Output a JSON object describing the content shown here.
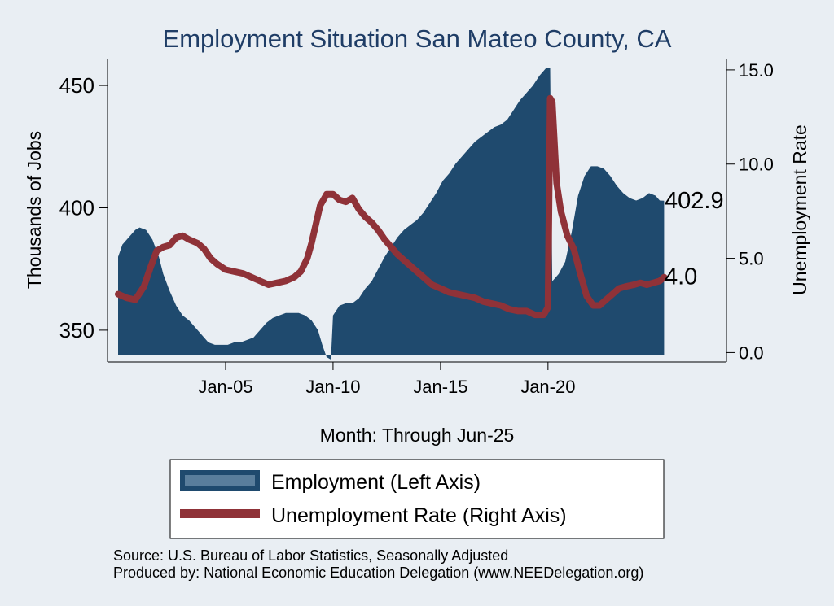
{
  "chart_data": {
    "type": "area",
    "title": "Employment Situation San Mateo  County, CA",
    "xlabel": "Month: Through Jun-25",
    "ylabel_left": "Thousands of Jobs",
    "ylabel_right": "Unemployment Rate",
    "x_range": [
      2000.0,
      2025.5
    ],
    "x_ticks": [
      {
        "x": 2005.0,
        "label": "Jan-05"
      },
      {
        "x": 2010.0,
        "label": "Jan-10"
      },
      {
        "x": 2015.0,
        "label": "Jan-15"
      },
      {
        "x": 2020.0,
        "label": "Jan-20"
      }
    ],
    "ylim_left": [
      337,
      461
    ],
    "yticks_left": [
      {
        "v": 350,
        "label": "350"
      },
      {
        "v": 400,
        "label": "400"
      },
      {
        "v": 450,
        "label": "450"
      }
    ],
    "ylim_right": [
      -0.5,
      15.6
    ],
    "yticks_right": [
      {
        "v": 0,
        "label": "0.0"
      },
      {
        "v": 5,
        "label": "5.0"
      },
      {
        "v": 10,
        "label": "10.0"
      },
      {
        "v": 15,
        "label": "15.0"
      }
    ],
    "area_baseline": 340,
    "grid": false,
    "legend_position": "bottom",
    "series": [
      {
        "name": "Employment (Left Axis)",
        "axis": "left",
        "kind": "area",
        "color": "#1f4a6e",
        "end_label": "402.9",
        "points": [
          [
            2000.0,
            380
          ],
          [
            2000.2,
            385
          ],
          [
            2000.5,
            388
          ],
          [
            2000.8,
            391
          ],
          [
            2001.0,
            392
          ],
          [
            2001.3,
            391
          ],
          [
            2001.6,
            387
          ],
          [
            2001.9,
            380
          ],
          [
            2002.1,
            373
          ],
          [
            2002.4,
            366
          ],
          [
            2002.7,
            360
          ],
          [
            2003.0,
            356
          ],
          [
            2003.3,
            354
          ],
          [
            2003.6,
            351
          ],
          [
            2003.9,
            348
          ],
          [
            2004.2,
            345
          ],
          [
            2004.5,
            344
          ],
          [
            2004.8,
            344
          ],
          [
            2005.1,
            344
          ],
          [
            2005.4,
            345
          ],
          [
            2005.7,
            345
          ],
          [
            2006.0,
            346
          ],
          [
            2006.3,
            347
          ],
          [
            2006.6,
            350
          ],
          [
            2006.9,
            353
          ],
          [
            2007.2,
            355
          ],
          [
            2007.5,
            356
          ],
          [
            2007.8,
            357
          ],
          [
            2008.1,
            357
          ],
          [
            2008.4,
            357
          ],
          [
            2008.7,
            356
          ],
          [
            2009.0,
            354
          ],
          [
            2009.3,
            350
          ],
          [
            2009.5,
            344
          ],
          [
            2009.7,
            339
          ],
          [
            2009.9,
            338
          ],
          [
            2010.0,
            356
          ],
          [
            2010.3,
            360
          ],
          [
            2010.6,
            361
          ],
          [
            2010.9,
            361
          ],
          [
            2011.2,
            363
          ],
          [
            2011.5,
            367
          ],
          [
            2011.8,
            370
          ],
          [
            2012.1,
            375
          ],
          [
            2012.4,
            380
          ],
          [
            2012.7,
            384
          ],
          [
            2013.0,
            388
          ],
          [
            2013.3,
            391
          ],
          [
            2013.6,
            393
          ],
          [
            2013.9,
            395
          ],
          [
            2014.2,
            398
          ],
          [
            2014.5,
            402
          ],
          [
            2014.8,
            406
          ],
          [
            2015.1,
            411
          ],
          [
            2015.4,
            414
          ],
          [
            2015.7,
            418
          ],
          [
            2016.0,
            421
          ],
          [
            2016.3,
            424
          ],
          [
            2016.6,
            427
          ],
          [
            2016.9,
            429
          ],
          [
            2017.2,
            431
          ],
          [
            2017.5,
            433
          ],
          [
            2017.8,
            434
          ],
          [
            2018.1,
            436
          ],
          [
            2018.4,
            440
          ],
          [
            2018.7,
            444
          ],
          [
            2019.0,
            447
          ],
          [
            2019.3,
            450
          ],
          [
            2019.6,
            454
          ],
          [
            2019.9,
            457
          ],
          [
            2020.1,
            457
          ],
          [
            2020.2,
            370
          ],
          [
            2020.5,
            373
          ],
          [
            2020.8,
            378
          ],
          [
            2021.1,
            390
          ],
          [
            2021.4,
            405
          ],
          [
            2021.7,
            413
          ],
          [
            2022.0,
            417
          ],
          [
            2022.3,
            417
          ],
          [
            2022.6,
            416
          ],
          [
            2022.9,
            413
          ],
          [
            2023.2,
            409
          ],
          [
            2023.5,
            406
          ],
          [
            2023.8,
            404
          ],
          [
            2024.1,
            403
          ],
          [
            2024.4,
            404
          ],
          [
            2024.7,
            406
          ],
          [
            2025.0,
            405
          ],
          [
            2025.2,
            403
          ],
          [
            2025.4,
            402.9
          ]
        ]
      },
      {
        "name": "Unemployment Rate (Right Axis)",
        "axis": "right",
        "kind": "line",
        "color": "#8f3238",
        "end_label": "4.0",
        "points": [
          [
            2000.0,
            3.1
          ],
          [
            2000.4,
            2.9
          ],
          [
            2000.8,
            2.8
          ],
          [
            2001.2,
            3.5
          ],
          [
            2001.5,
            4.5
          ],
          [
            2001.8,
            5.4
          ],
          [
            2002.1,
            5.6
          ],
          [
            2002.4,
            5.7
          ],
          [
            2002.7,
            6.1
          ],
          [
            2003.0,
            6.2
          ],
          [
            2003.3,
            6.0
          ],
          [
            2003.7,
            5.8
          ],
          [
            2004.0,
            5.5
          ],
          [
            2004.3,
            5.0
          ],
          [
            2004.6,
            4.7
          ],
          [
            2005.0,
            4.4
          ],
          [
            2005.4,
            4.3
          ],
          [
            2005.8,
            4.2
          ],
          [
            2006.2,
            4.0
          ],
          [
            2006.6,
            3.8
          ],
          [
            2007.0,
            3.6
          ],
          [
            2007.4,
            3.7
          ],
          [
            2007.8,
            3.8
          ],
          [
            2008.2,
            4.0
          ],
          [
            2008.5,
            4.3
          ],
          [
            2008.8,
            5.0
          ],
          [
            2009.0,
            5.8
          ],
          [
            2009.2,
            6.8
          ],
          [
            2009.4,
            7.8
          ],
          [
            2009.7,
            8.4
          ],
          [
            2010.0,
            8.4
          ],
          [
            2010.3,
            8.1
          ],
          [
            2010.6,
            8.0
          ],
          [
            2010.9,
            8.2
          ],
          [
            2011.2,
            7.6
          ],
          [
            2011.5,
            7.2
          ],
          [
            2011.8,
            6.9
          ],
          [
            2012.1,
            6.5
          ],
          [
            2012.4,
            6.0
          ],
          [
            2012.7,
            5.6
          ],
          [
            2013.0,
            5.2
          ],
          [
            2013.4,
            4.8
          ],
          [
            2013.8,
            4.4
          ],
          [
            2014.2,
            4.0
          ],
          [
            2014.6,
            3.6
          ],
          [
            2015.0,
            3.4
          ],
          [
            2015.4,
            3.2
          ],
          [
            2015.8,
            3.1
          ],
          [
            2016.2,
            3.0
          ],
          [
            2016.6,
            2.9
          ],
          [
            2017.0,
            2.7
          ],
          [
            2017.4,
            2.6
          ],
          [
            2017.8,
            2.5
          ],
          [
            2018.2,
            2.3
          ],
          [
            2018.6,
            2.2
          ],
          [
            2019.0,
            2.2
          ],
          [
            2019.4,
            2.0
          ],
          [
            2019.8,
            2.0
          ],
          [
            2020.0,
            2.4
          ],
          [
            2020.1,
            13.5
          ],
          [
            2020.2,
            13.3
          ],
          [
            2020.4,
            9.0
          ],
          [
            2020.6,
            7.5
          ],
          [
            2020.9,
            6.2
          ],
          [
            2021.2,
            5.5
          ],
          [
            2021.5,
            4.2
          ],
          [
            2021.8,
            3.0
          ],
          [
            2022.1,
            2.5
          ],
          [
            2022.4,
            2.5
          ],
          [
            2022.7,
            2.8
          ],
          [
            2023.0,
            3.1
          ],
          [
            2023.3,
            3.4
          ],
          [
            2023.6,
            3.5
          ],
          [
            2024.0,
            3.6
          ],
          [
            2024.3,
            3.7
          ],
          [
            2024.6,
            3.6
          ],
          [
            2024.9,
            3.7
          ],
          [
            2025.2,
            3.8
          ],
          [
            2025.4,
            4.0
          ]
        ]
      }
    ],
    "source_lines": [
      "Source: U.S. Bureau of Labor Statistics, Seasonally Adjusted",
      "Produced by: National Economic Education Delegation (www.NEEDelegation.org)"
    ]
  }
}
